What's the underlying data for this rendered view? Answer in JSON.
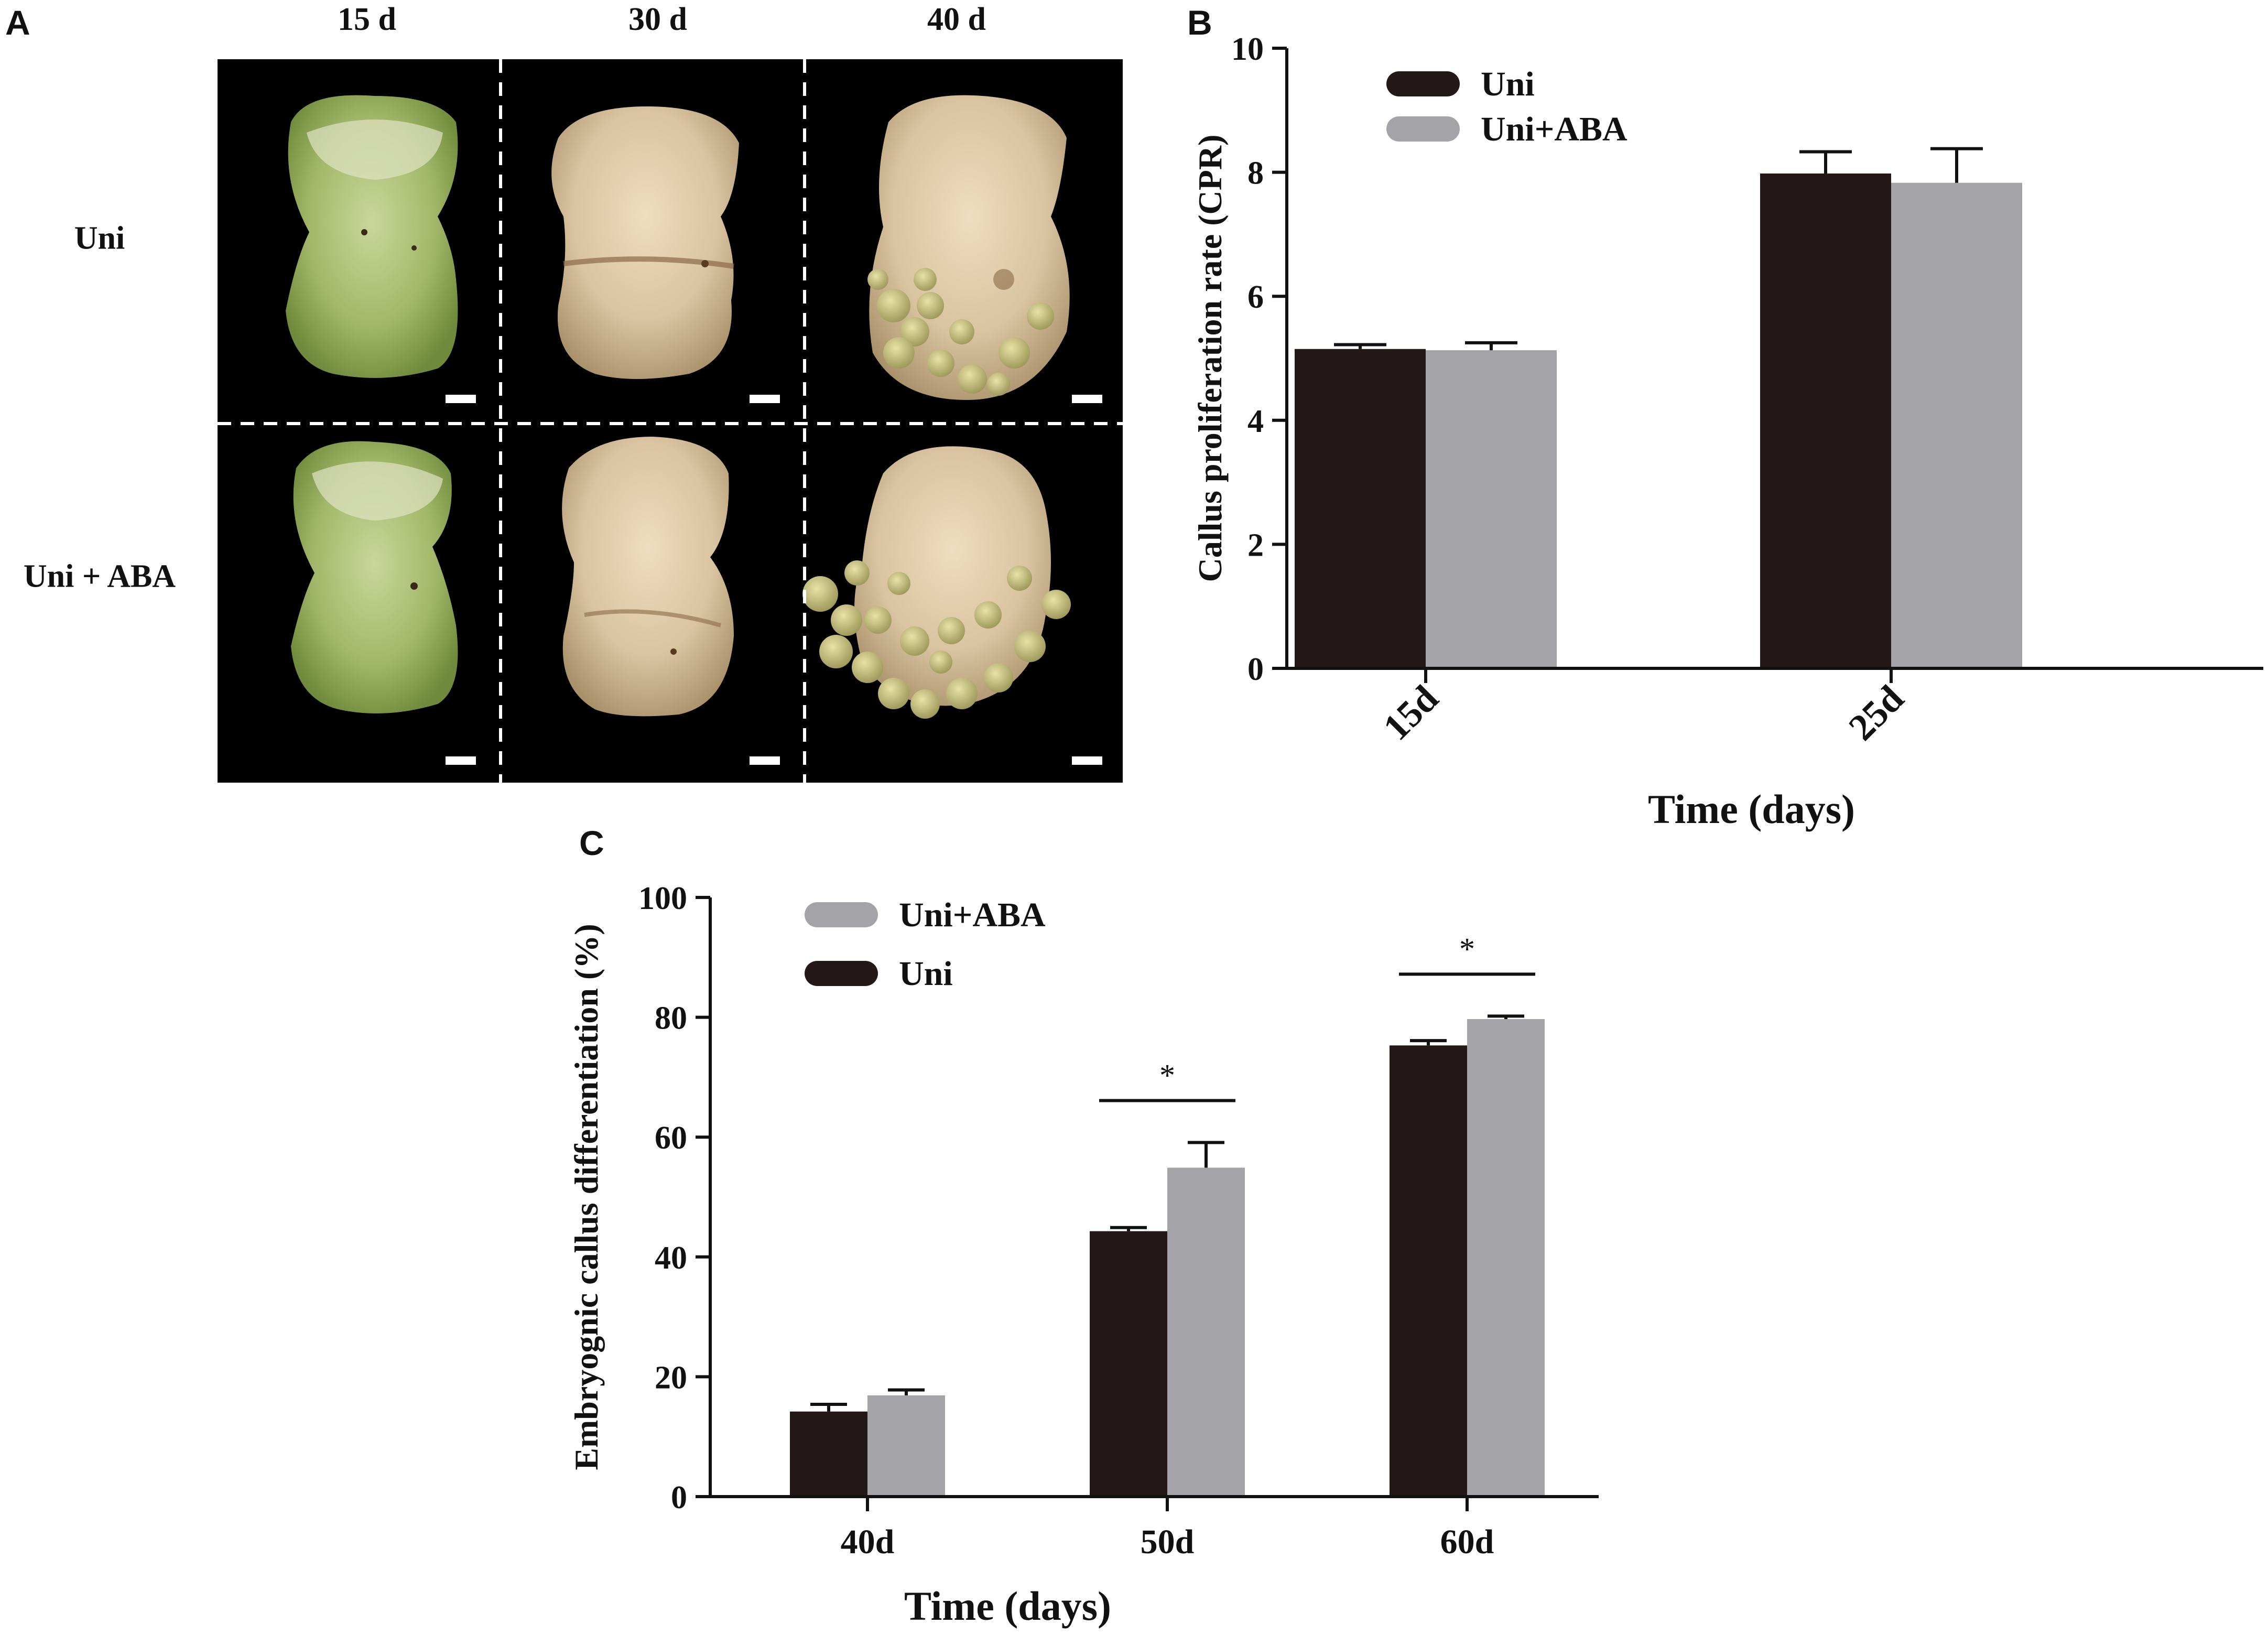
{
  "panels": {
    "a": "A",
    "b": "B",
    "c": "C"
  },
  "panel_a": {
    "column_titles": [
      "15 d",
      "30 d",
      "40 d"
    ],
    "row_titles": [
      "Uni",
      "Uni + ABA"
    ]
  },
  "colors": {
    "uni": "#231818",
    "uni_aba": "#a3a3a8",
    "photo_bg": "#000000"
  },
  "chart_data": [
    {
      "type": "bar",
      "panel": "B",
      "categories": [
        "15d",
        "25d"
      ],
      "series": [
        {
          "name": "Uni",
          "values": [
            5.15,
            7.98
          ],
          "errors": [
            0.07,
            0.35
          ]
        },
        {
          "name": "Uni+ABA",
          "values": [
            5.13,
            7.83
          ],
          "errors": [
            0.12,
            0.55
          ]
        }
      ],
      "xlabel": "Time (days)",
      "ylabel": "Callus proliferation rate (CPR)",
      "ylim": [
        0,
        10
      ],
      "yticks": [
        "0",
        "2",
        "4",
        "6",
        "8",
        "10"
      ],
      "legend": [
        "Uni",
        "Uni+ABA"
      ],
      "legend_position": "top-left",
      "grid": false
    },
    {
      "type": "bar",
      "panel": "C",
      "categories": [
        "40d",
        "50d",
        "60d"
      ],
      "series": [
        {
          "name": "Uni",
          "values": [
            14.2,
            44.3,
            75.3
          ],
          "errors": [
            1.2,
            0.6,
            0.8
          ]
        },
        {
          "name": "Uni+ABA",
          "values": [
            16.9,
            54.9,
            79.7
          ],
          "errors": [
            0.9,
            4.2,
            0.5
          ]
        }
      ],
      "significance": [
        {
          "category": "50d",
          "label": "*"
        },
        {
          "category": "60d",
          "label": "*"
        }
      ],
      "xlabel": "Time (days)",
      "ylabel": "Embryognic callus differentiation (%)",
      "ylim": [
        0,
        100
      ],
      "yticks": [
        "0",
        "20",
        "40",
        "60",
        "80",
        "100"
      ],
      "legend": [
        "Uni+ABA",
        "Uni"
      ],
      "legend_position": "top-left",
      "grid": false
    }
  ]
}
